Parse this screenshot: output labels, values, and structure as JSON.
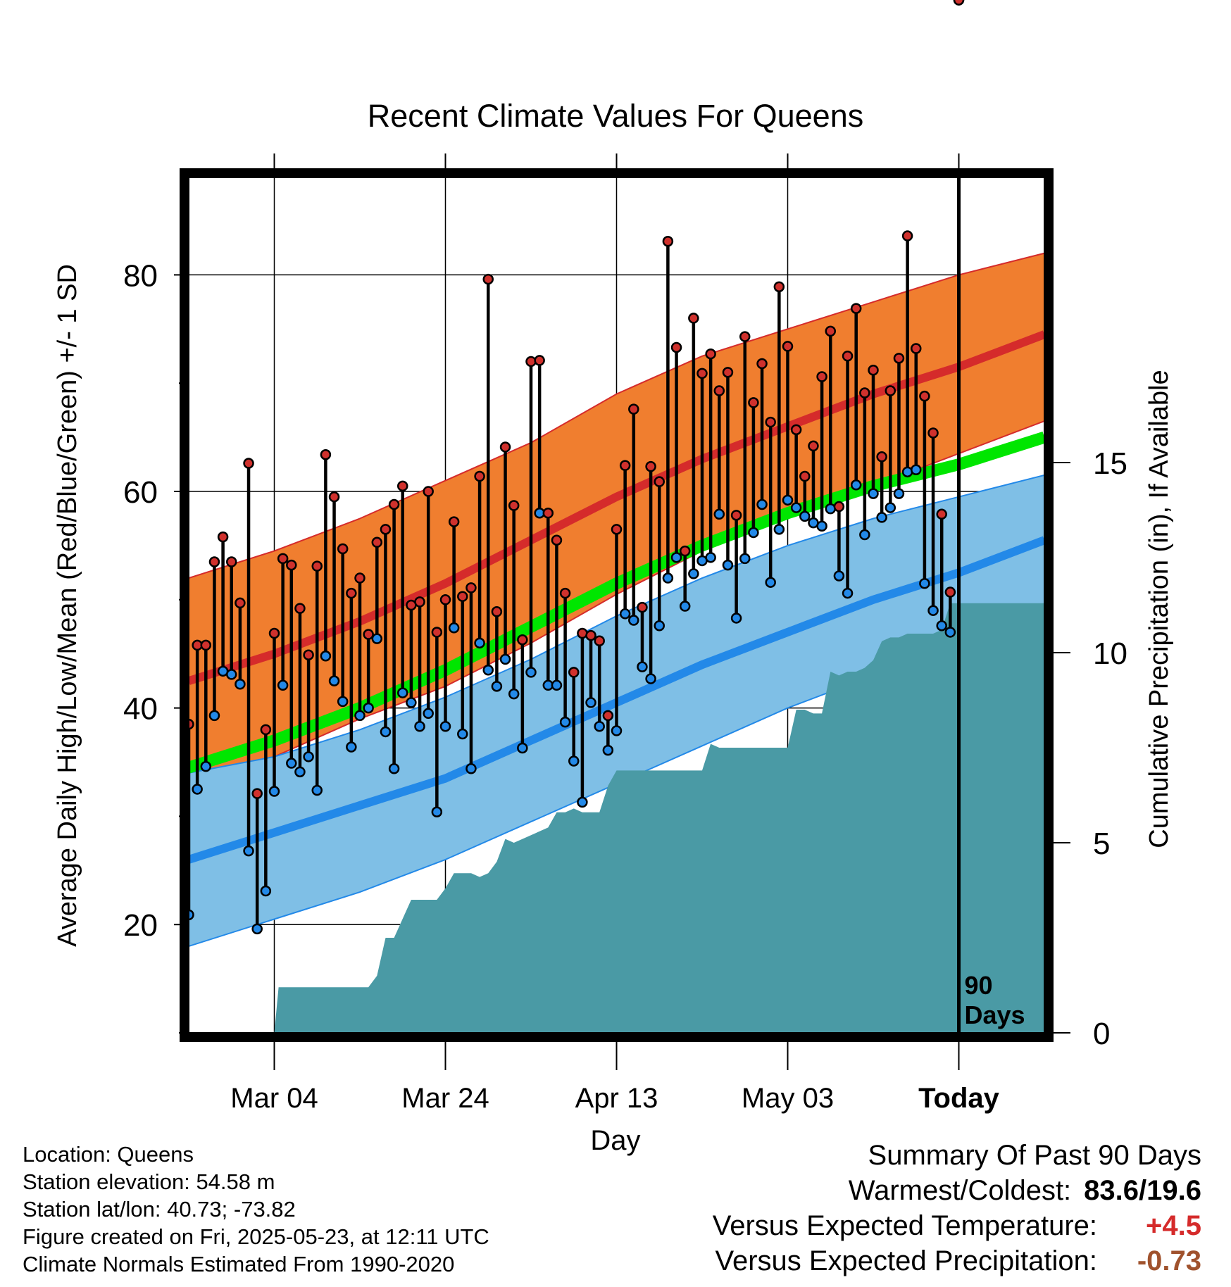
{
  "colors": {
    "record_high_band": "#f07e2f",
    "mean_high_line": "#d52b2b",
    "mean_low_line": "#2389e8",
    "low_band": "#7fbfe6",
    "mean_line": "#00e600",
    "precip_fill": "#4a9aa5",
    "high_dot": "#d0312d",
    "low_dot": "#2389e8",
    "anomaly_temp": "#d52b2b",
    "anomaly_precip": "#a0522d"
  },
  "chart_data": {
    "type": "line",
    "title": "Recent Climate Values For Queens",
    "xlabel": "Day",
    "ylabel": "Average Daily High/Low/Mean (Red/Blue/Green) +/- 1 SD",
    "y2label": "Cumulative Precipitation (in), If Available",
    "xlim": [
      0,
      100
    ],
    "ylim": [
      10,
      89
    ],
    "y2lim": [
      0,
      22.5
    ],
    "x_ticks": [
      {
        "x": 10,
        "label": "Mar 04",
        "bold": false
      },
      {
        "x": 30,
        "label": "Mar 24",
        "bold": false
      },
      {
        "x": 50,
        "label": "Apr 13",
        "bold": false
      },
      {
        "x": 70,
        "label": "May 03",
        "bold": false
      },
      {
        "x": 90,
        "label": "Today",
        "bold": true
      }
    ],
    "y_ticks": [
      20,
      40,
      60,
      80
    ],
    "y_minor_ticks": [
      10,
      30,
      50,
      70
    ],
    "y2_ticks": [
      0,
      5,
      10,
      15
    ],
    "today_x": 90,
    "today_label_line1": "90",
    "today_label_line2": "Days",
    "normals": {
      "x": [
        0,
        10,
        20,
        30,
        40,
        50,
        60,
        70,
        80,
        90,
        100
      ],
      "mean_high": [
        42.5,
        45,
        48,
        51.5,
        55.5,
        59.5,
        63,
        66,
        69,
        71.5,
        74.5
      ],
      "high_plus_sd": [
        52,
        54.5,
        57.5,
        61,
        64.5,
        69,
        72.5,
        75,
        77.5,
        80,
        82
      ],
      "high_minus_sd": [
        33.5,
        35.5,
        39,
        42,
        46,
        50.5,
        54.5,
        57.5,
        60.5,
        63.5,
        66.5
      ],
      "mean": [
        34.5,
        37,
        40,
        43.5,
        47.5,
        51.5,
        55,
        58,
        60.5,
        62.5,
        65
      ],
      "mean_low": [
        26,
        28.5,
        31,
        33.5,
        37,
        40.5,
        44,
        47,
        50,
        52.5,
        55.5
      ],
      "low_plus_sd": [
        34,
        35.5,
        38,
        41,
        44.5,
        48.5,
        52,
        55,
        57.5,
        59.5,
        61.5
      ],
      "low_minus_sd": [
        18,
        20.5,
        23,
        26,
        29.5,
        33,
        36.5,
        40,
        43,
        46,
        49
      ]
    },
    "daily_x": [
      0,
      1,
      2,
      3,
      4,
      5,
      6,
      7,
      8,
      9,
      10,
      11,
      12,
      13,
      14,
      15,
      16,
      17,
      18,
      19,
      20,
      21,
      22,
      23,
      24,
      25,
      26,
      27,
      28,
      29,
      30,
      31,
      32,
      33,
      34,
      35,
      36,
      37,
      38,
      39,
      40,
      41,
      42,
      43,
      44,
      45,
      46,
      47,
      48,
      49,
      50,
      51,
      52,
      53,
      54,
      55,
      56,
      57,
      58,
      59,
      60,
      61,
      62,
      63,
      64,
      65,
      66,
      67,
      68,
      69,
      70,
      71,
      72,
      73,
      74,
      75,
      76,
      77,
      78,
      79,
      80,
      81,
      82,
      83,
      84,
      85,
      86,
      87,
      88,
      89,
      90
    ],
    "daily_high": [
      38.5,
      45.8,
      45.8,
      53.5,
      55.8,
      53.5,
      49.7,
      62.6,
      32.1,
      38,
      46.9,
      53.8,
      53.2,
      49.2,
      44.9,
      53.1,
      63.4,
      59.5,
      54.7,
      50.6,
      52,
      46.8,
      55.3,
      56.5,
      58.8,
      60.5,
      49.5,
      49.8,
      60,
      47,
      50,
      57.2,
      50.3,
      51.1,
      61.4,
      79.6,
      48.9,
      64.1,
      58.7,
      46.3,
      72,
      72.1,
      58,
      55.5,
      50.6,
      43.3,
      46.9,
      46.7,
      46.2,
      39.3,
      56.5,
      62.4,
      67.6,
      49.3,
      62.3,
      60.9,
      83.1,
      73.3,
      54.5,
      76,
      70.9,
      72.7,
      69.3,
      71,
      57.8,
      74.3,
      68.2,
      71.8,
      66.4,
      78.9,
      73.4,
      65.7,
      61.4,
      64.2,
      70.6,
      74.8,
      58.6,
      72.5,
      76.9,
      69.1,
      71.2,
      63.2,
      69.3,
      72.3,
      83.6,
      73.2,
      68.8,
      65.4,
      57.9,
      50.7
    ],
    "daily_low": [
      20.9,
      32.5,
      34.6,
      39.3,
      43.4,
      43.1,
      42.2,
      26.8,
      19.6,
      23.1,
      32.3,
      42.1,
      34.9,
      34.1,
      35.5,
      32.4,
      44.8,
      42.5,
      40.6,
      36.4,
      39.3,
      40,
      46.4,
      37.8,
      34.4,
      41.4,
      40.5,
      38.3,
      39.5,
      30.4,
      38.3,
      47.4,
      37.6,
      34.4,
      46,
      43.5,
      42,
      44.5,
      41.3,
      36.3,
      43.3,
      58,
      42.1,
      42.1,
      38.7,
      35.1,
      31.3,
      40.5,
      38.3,
      36.1,
      37.9,
      48.7,
      48.1,
      43.8,
      42.7,
      47.6,
      52,
      53.9,
      49.4,
      52.4,
      53.6,
      53.9,
      57.9,
      53.2,
      48.3,
      53.8,
      56.2,
      58.8,
      51.6,
      56.5,
      59.2,
      58.5,
      57.7,
      57.1,
      56.8,
      58.4,
      52.2,
      50.6,
      60.6,
      56,
      59.8,
      57.6,
      58.5,
      59.8,
      61.8,
      62,
      51.5,
      49,
      47.6,
      47
    ],
    "precip": {
      "x": [
        0,
        10,
        10.5,
        21,
        22,
        23,
        24,
        26,
        27,
        29,
        30,
        31,
        33,
        34,
        35,
        36,
        37,
        38,
        39,
        40,
        42,
        43,
        44,
        45,
        46,
        48,
        49,
        49.5,
        50,
        52,
        60,
        61,
        62,
        69,
        70,
        71,
        72,
        73,
        74,
        75,
        76,
        77,
        78,
        79,
        80,
        81,
        82,
        83,
        84,
        85,
        86,
        87,
        88,
        89,
        90,
        91,
        100
      ],
      "y": [
        0,
        0,
        1.2,
        1.2,
        1.5,
        2.5,
        2.5,
        3.5,
        3.5,
        3.5,
        3.8,
        4.2,
        4.2,
        4.1,
        4.2,
        4.5,
        5.1,
        5,
        5.1,
        5.2,
        5.4,
        5.8,
        5.8,
        5.9,
        5.8,
        5.8,
        6.5,
        6.7,
        6.9,
        6.9,
        6.9,
        7.6,
        7.5,
        7.5,
        7.5,
        8.5,
        8.5,
        8.4,
        8.4,
        9.5,
        9.4,
        9.5,
        9.5,
        9.6,
        9.8,
        10.3,
        10.4,
        10.4,
        10.5,
        10.5,
        10.5,
        10.5,
        10.6,
        11.3,
        11.3,
        11.3,
        11.3
      ]
    }
  },
  "info": {
    "location": "Location: Queens",
    "elevation": "Station elevation: 54.58 m",
    "latlon": "Station lat/lon: 40.73; -73.82",
    "created": "Figure created on Fri, 2025-05-23, at 12:11 UTC",
    "normals": "Climate Normals Estimated From 1990-2020"
  },
  "summary": {
    "title": "Summary Of Past 90 Days",
    "warmest_label": "Warmest/Coldest:",
    "warmest_value": "83.6/19.6",
    "temp_label": "Versus Expected Temperature:",
    "temp_value": "+4.5",
    "precip_label": "Versus Expected Precipitation:",
    "precip_value": "-0.73"
  }
}
